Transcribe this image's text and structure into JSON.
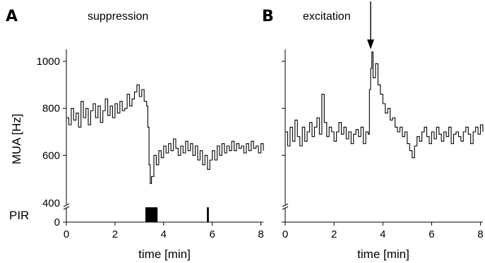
{
  "figure": {
    "ylabel": "MUA [Hz]",
    "pir_label": "PIR",
    "xlabel": "time [min]"
  },
  "chart_data": [
    {
      "panel": "A",
      "title": "suppression",
      "type": "line",
      "xlabel": "time [min]",
      "ylabel": "MUA [Hz]",
      "xlim": [
        0,
        8.1
      ],
      "ylim": [
        400,
        1050
      ],
      "xticks": [
        0,
        2,
        4,
        6,
        8
      ],
      "yticks": [
        400,
        600,
        800,
        1000
      ],
      "y_axis_break": true,
      "series": [
        {
          "x": [
            0.0,
            0.1,
            0.2,
            0.3,
            0.4,
            0.5,
            0.6,
            0.7,
            0.8,
            0.9,
            1.0,
            1.1,
            1.2,
            1.3,
            1.4,
            1.5,
            1.6,
            1.7,
            1.8,
            1.9,
            2.0,
            2.1,
            2.2,
            2.3,
            2.4,
            2.5,
            2.6,
            2.7,
            2.8,
            2.9,
            3.0,
            3.1,
            3.2,
            3.3,
            3.35,
            3.4,
            3.45,
            3.5,
            3.6,
            3.7,
            3.8,
            3.9,
            4.0,
            4.1,
            4.2,
            4.3,
            4.4,
            4.5,
            4.6,
            4.7,
            4.8,
            4.9,
            5.0,
            5.1,
            5.2,
            5.3,
            5.4,
            5.5,
            5.6,
            5.7,
            5.8,
            5.9,
            6.0,
            6.1,
            6.2,
            6.3,
            6.4,
            6.5,
            6.6,
            6.7,
            6.8,
            6.9,
            7.0,
            7.1,
            7.2,
            7.3,
            7.4,
            7.5,
            7.6,
            7.7,
            7.8,
            7.9,
            8.0,
            8.1
          ],
          "y": [
            760,
            730,
            800,
            750,
            780,
            720,
            830,
            760,
            800,
            730,
            790,
            820,
            760,
            810,
            740,
            790,
            840,
            770,
            810,
            760,
            820,
            780,
            830,
            790,
            800,
            860,
            810,
            840,
            870,
            900,
            850,
            880,
            830,
            810,
            720,
            560,
            480,
            510,
            600,
            560,
            620,
            590,
            640,
            610,
            650,
            620,
            670,
            630,
            600,
            640,
            610,
            660,
            620,
            650,
            600,
            640,
            580,
            620,
            560,
            600,
            540,
            580,
            620,
            580,
            640,
            600,
            650,
            610,
            640,
            620,
            660,
            620,
            650,
            630,
            640,
            610,
            650,
            620,
            660,
            630,
            640,
            610,
            650,
            620
          ]
        }
      ],
      "pir_events": [
        {
          "start": 3.25,
          "end": 3.75
        },
        {
          "start": 5.78,
          "end": 5.86
        }
      ]
    },
    {
      "panel": "B",
      "title": "excitation",
      "type": "line",
      "xlabel": "time [min]",
      "ylim": [
        400,
        1050
      ],
      "xlim": [
        0,
        8.1
      ],
      "xticks": [
        0,
        2,
        4,
        6,
        8
      ],
      "y_axis_break": true,
      "arrow_at_min": 3.5,
      "series": [
        {
          "x": [
            0.0,
            0.1,
            0.2,
            0.3,
            0.4,
            0.5,
            0.6,
            0.7,
            0.8,
            0.9,
            1.0,
            1.1,
            1.2,
            1.3,
            1.4,
            1.5,
            1.6,
            1.7,
            1.8,
            1.9,
            2.0,
            2.1,
            2.2,
            2.3,
            2.4,
            2.5,
            2.6,
            2.7,
            2.8,
            2.9,
            3.0,
            3.1,
            3.2,
            3.3,
            3.4,
            3.45,
            3.5,
            3.55,
            3.6,
            3.7,
            3.8,
            3.9,
            4.0,
            4.1,
            4.2,
            4.3,
            4.4,
            4.5,
            4.6,
            4.7,
            4.8,
            4.9,
            5.0,
            5.1,
            5.2,
            5.3,
            5.4,
            5.5,
            5.6,
            5.7,
            5.8,
            5.9,
            6.0,
            6.1,
            6.2,
            6.3,
            6.4,
            6.5,
            6.6,
            6.7,
            6.8,
            6.9,
            7.0,
            7.1,
            7.2,
            7.3,
            7.4,
            7.5,
            7.6,
            7.7,
            7.8,
            7.9,
            8.0,
            8.1
          ],
          "y": [
            700,
            640,
            720,
            660,
            750,
            680,
            640,
            720,
            660,
            700,
            740,
            680,
            720,
            760,
            690,
            860,
            740,
            680,
            720,
            700,
            660,
            700,
            740,
            690,
            720,
            670,
            700,
            650,
            690,
            710,
            680,
            720,
            650,
            700,
            690,
            880,
            970,
            1040,
            930,
            990,
            900,
            860,
            820,
            780,
            800,
            750,
            760,
            720,
            700,
            720,
            680,
            700,
            650,
            620,
            590,
            640,
            680,
            660,
            700,
            720,
            680,
            650,
            700,
            670,
            720,
            690,
            660,
            700,
            680,
            720,
            650,
            690,
            700,
            680,
            660,
            700,
            720,
            690,
            650,
            700,
            720,
            690,
            730,
            700
          ]
        }
      ]
    }
  ]
}
